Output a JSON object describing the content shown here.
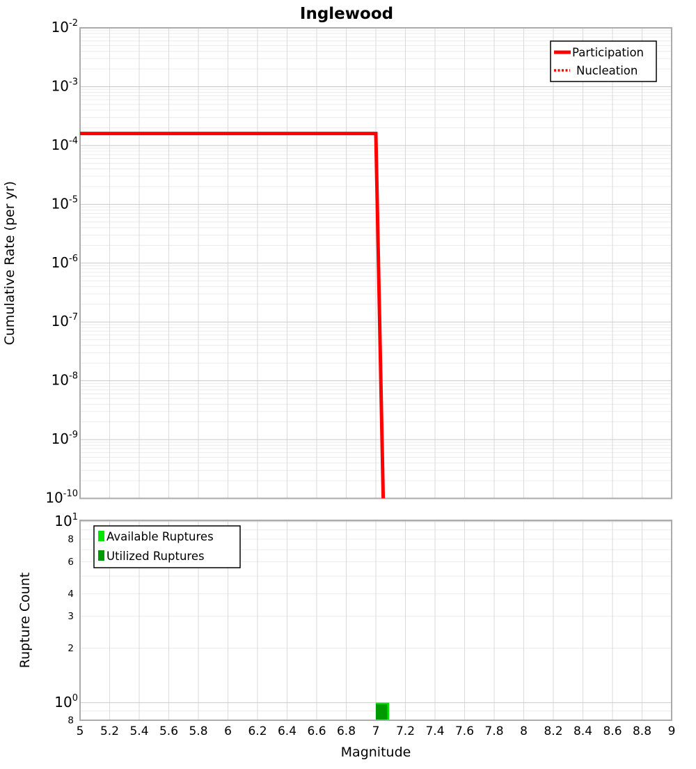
{
  "title": "Inglewood",
  "colors": {
    "participation_red": "#ff0000",
    "nucleation_red": "#ff0000",
    "available_green": "#00e400",
    "utilized_green": "#009a00",
    "grid_major": "#c9c9c9",
    "grid_minor": "#ececec",
    "grid_vertical": "#dadada",
    "panel_border": "#ababab",
    "legend_border": "#000000",
    "background": "#ffffff",
    "text": "#000000"
  },
  "chart_data": [
    {
      "type": "line",
      "panel": "top",
      "title": "Inglewood",
      "xlabel": "",
      "ylabel": "Cumulative Rate (per yr)",
      "xlim": [
        5,
        9
      ],
      "ylim": [
        1e-10,
        0.01
      ],
      "yscale": "log",
      "xscale": "linear",
      "grid": true,
      "x_tick_step": 0.2,
      "y_tick_exponents": [
        -2,
        -3,
        -4,
        -5,
        -6,
        -7,
        -8,
        -9,
        -10
      ],
      "legend": {
        "position": "top-right",
        "entries": [
          {
            "label": "Participation",
            "style": "solid",
            "color": "#ff0000"
          },
          {
            "label": "Nucleation",
            "style": "dotted",
            "color": "#ff0000"
          }
        ]
      },
      "series": [
        {
          "name": "Participation",
          "style": "solid",
          "color": "#ff0000",
          "points": [
            [
              5.0,
              0.00016
            ],
            [
              7.0,
              0.00016
            ],
            [
              7.05,
              1e-10
            ]
          ]
        },
        {
          "name": "Nucleation",
          "style": "dotted",
          "color": "#ff0000",
          "points": [
            [
              5.0,
              0.00016
            ],
            [
              7.0,
              0.00016
            ],
            [
              7.05,
              1e-10
            ]
          ]
        }
      ]
    },
    {
      "type": "bar",
      "panel": "bottom",
      "title": "",
      "xlabel": "Magnitude",
      "ylabel": "Rupture Count",
      "xlim": [
        5,
        9
      ],
      "ylim": [
        0.8,
        10.2
      ],
      "yscale": "log",
      "grid": true,
      "x_ticks": [
        "5",
        "5.2",
        "5.4",
        "5.6",
        "5.8",
        "6",
        "6.2",
        "6.4",
        "6.6",
        "6.8",
        "7",
        "7.2",
        "7.4",
        "7.6",
        "7.8",
        "8",
        "8.2",
        "8.4",
        "8.6",
        "8.8",
        "9"
      ],
      "y_major_exponents": [
        1,
        0
      ],
      "y_minor_labels": [
        {
          "value": 8,
          "label": "8"
        },
        {
          "value": 6,
          "label": "6"
        },
        {
          "value": 4,
          "label": "4"
        },
        {
          "value": 3,
          "label": "3"
        },
        {
          "value": 2,
          "label": "2"
        },
        {
          "value": 0.8,
          "label": "8"
        }
      ],
      "legend": {
        "position": "top-left",
        "entries": [
          {
            "label": "Available Ruptures",
            "color": "#00e400"
          },
          {
            "label": "Utilized Ruptures",
            "color": "#009a00"
          }
        ]
      },
      "bars": [
        {
          "x_left": 7.0,
          "x_right": 7.09,
          "available_count": 1,
          "utilized_count": 1
        }
      ]
    }
  ]
}
